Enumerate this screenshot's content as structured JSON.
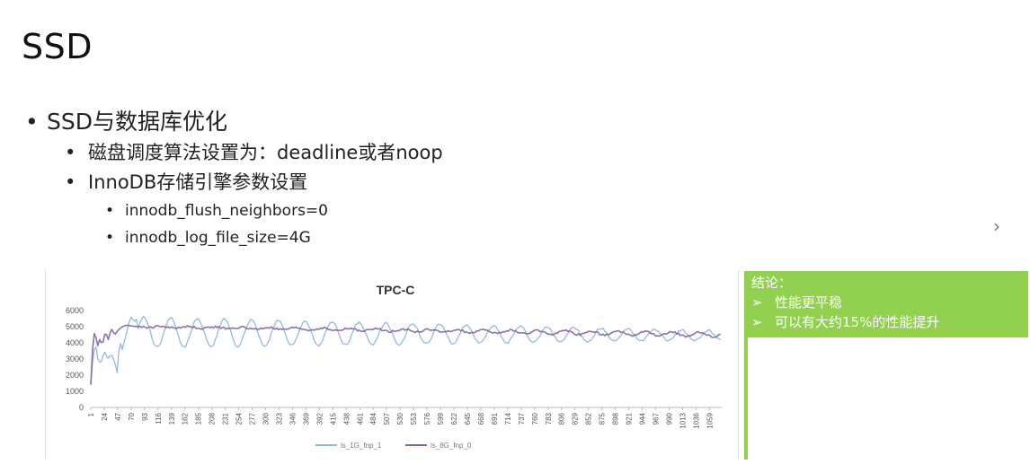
{
  "slide": {
    "title": "SSD",
    "bullets": [
      {
        "level": 1,
        "text": "SSD与数据库优化"
      },
      {
        "level": 2,
        "text": "磁盘调度算法设置为：deadline或者noop"
      },
      {
        "level": 2,
        "text": "InnoDB存储引擎参数设置"
      },
      {
        "level": 3,
        "text": "innodb_flush_neighbors=0"
      },
      {
        "level": 3,
        "text": "innodb_log_file_size=4G"
      }
    ],
    "next_arrow": "›"
  },
  "conclusion": {
    "heading": "结论：",
    "marker": "➢",
    "points": [
      "性能更平稳",
      "可以有大约15%的性能提升"
    ],
    "color": "#92d050"
  },
  "chart_data": {
    "type": "line",
    "title": "TPC-C",
    "xlabel": "",
    "ylabel": "",
    "ylim": [
      0,
      6000
    ],
    "yticks": [
      0,
      1000,
      2000,
      3000,
      4000,
      5000,
      6000
    ],
    "x_ticks": [
      "1",
      "24",
      "47",
      "70",
      "93",
      "116",
      "139",
      "162",
      "185",
      "208",
      "231",
      "254",
      "277",
      "300",
      "323",
      "346",
      "369",
      "392",
      "415",
      "438",
      "461",
      "484",
      "507",
      "530",
      "553",
      "576",
      "599",
      "622",
      "645",
      "668",
      "691",
      "714",
      "737",
      "760",
      "783",
      "806",
      "829",
      "852",
      "875",
      "898",
      "921",
      "944",
      "967",
      "990",
      "1013",
      "1036",
      "1059"
    ],
    "x_range": [
      1,
      1080
    ],
    "grid": false,
    "legend_position": "bottom",
    "series": [
      {
        "name": "ls_1G_fnp_1",
        "color": "#8fb4de",
        "startup": [
          [
            1,
            1500
          ],
          [
            5,
            3200
          ],
          [
            9,
            4000
          ],
          [
            13,
            3000
          ],
          [
            18,
            2700
          ],
          [
            24,
            3500
          ],
          [
            30,
            3000
          ],
          [
            36,
            3300
          ],
          [
            42,
            2800
          ],
          [
            47,
            2000
          ],
          [
            50,
            4200
          ],
          [
            55,
            3600
          ],
          [
            62,
            4600
          ],
          [
            66,
            5200
          ],
          [
            70,
            5600
          ],
          [
            75,
            5300
          ],
          [
            80,
            5500
          ]
        ],
        "oscillation": {
          "start": 80,
          "period": 46,
          "phase": 0,
          "amplitude_start": 950,
          "amplitude_end": 280,
          "mean_start": 4650,
          "mean_end": 4450
        }
      },
      {
        "name": "ls_8G_fnp_0",
        "color": "#8064a2",
        "startup": [
          [
            1,
            1400
          ],
          [
            4,
            3600
          ],
          [
            8,
            4900
          ],
          [
            12,
            3700
          ],
          [
            16,
            4200
          ],
          [
            21,
            3900
          ],
          [
            26,
            4700
          ],
          [
            31,
            4200
          ],
          [
            36,
            4900
          ],
          [
            42,
            4500
          ],
          [
            48,
            4800
          ],
          [
            55,
            5000
          ],
          [
            62,
            5100
          ],
          [
            70,
            5050
          ],
          [
            80,
            5000
          ]
        ],
        "oscillation": {
          "start": 80,
          "period": 46,
          "phase": 2.2,
          "amplitude_start": 40,
          "amplitude_end": 130,
          "mean_start": 5000,
          "mean_end": 4500
        }
      }
    ]
  }
}
